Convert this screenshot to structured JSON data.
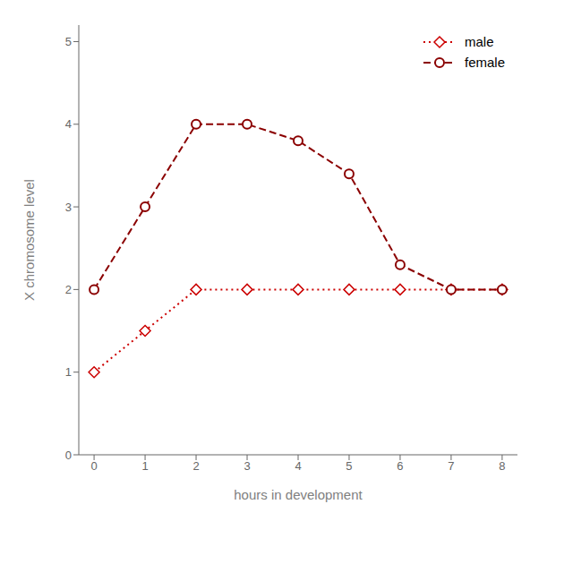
{
  "chart_data": {
    "type": "line",
    "xlabel": "hours in development",
    "ylabel": "X chromosome level",
    "x": [
      0,
      1,
      2,
      3,
      4,
      5,
      6,
      7,
      8
    ],
    "series": [
      {
        "name": "male",
        "color": "#cc0000",
        "line_style": "dotted",
        "marker": "diamond",
        "values": [
          1,
          1.5,
          2,
          2,
          2,
          2,
          2,
          2,
          2
        ]
      },
      {
        "name": "female",
        "color": "#8B0000",
        "line_style": "dashed",
        "marker": "circle",
        "values": [
          2,
          3,
          4,
          4,
          3.8,
          3.4,
          2.3,
          2,
          2
        ]
      }
    ],
    "xlim": [
      -0.3,
      8.3
    ],
    "ylim": [
      0,
      5.2
    ],
    "xticks": [
      0,
      1,
      2,
      3,
      4,
      5,
      6,
      7,
      8
    ],
    "yticks": [
      0,
      1,
      2,
      3,
      4,
      5
    ],
    "grid": false,
    "legend": "upper right"
  }
}
